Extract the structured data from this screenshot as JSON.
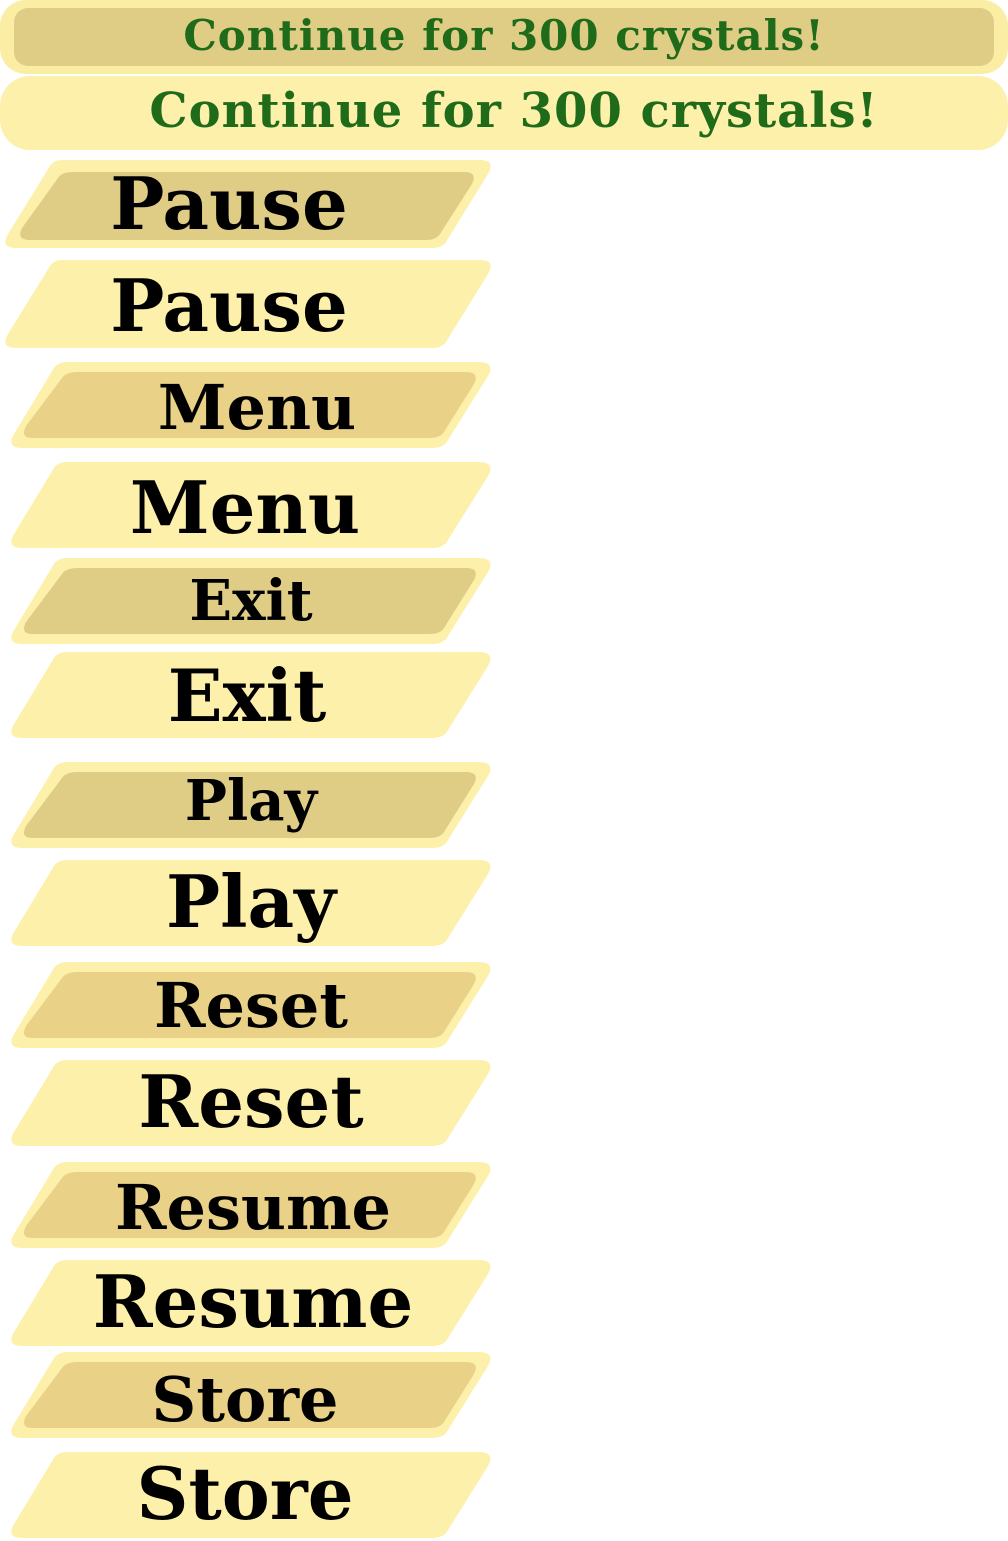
{
  "banners": {
    "pressed_label": "Continue for 300 crystals!",
    "normal_label": "Continue for 300 crystals!"
  },
  "colors": {
    "text_green": "#1f6b1a",
    "outer_light": "#fdf0aa",
    "inner_pressed_olive": "#dfcd86",
    "inner_pressed_gold": "#e9d287",
    "text_black": "#000000"
  },
  "buttons": [
    {
      "name": "pause-button-pressed",
      "label": "Pause",
      "state": "pressed"
    },
    {
      "name": "pause-button",
      "label": "Pause",
      "state": "normal"
    },
    {
      "name": "menu-button-pressed",
      "label": "Menu",
      "state": "pressed"
    },
    {
      "name": "menu-button",
      "label": "Menu",
      "state": "normal"
    },
    {
      "name": "exit-button-pressed",
      "label": "Exit",
      "state": "pressed"
    },
    {
      "name": "exit-button",
      "label": "Exit",
      "state": "normal"
    },
    {
      "name": "play-button-pressed",
      "label": "Play",
      "state": "pressed"
    },
    {
      "name": "play-button",
      "label": "Play",
      "state": "normal"
    },
    {
      "name": "reset-button-pressed",
      "label": "Reset",
      "state": "pressed"
    },
    {
      "name": "reset-button",
      "label": "Reset",
      "state": "normal"
    },
    {
      "name": "resume-button-pressed",
      "label": "Resume",
      "state": "pressed"
    },
    {
      "name": "resume-button",
      "label": "Resume",
      "state": "normal"
    },
    {
      "name": "store-button-pressed",
      "label": "Store",
      "state": "pressed"
    },
    {
      "name": "store-button",
      "label": "Store",
      "state": "normal"
    }
  ]
}
